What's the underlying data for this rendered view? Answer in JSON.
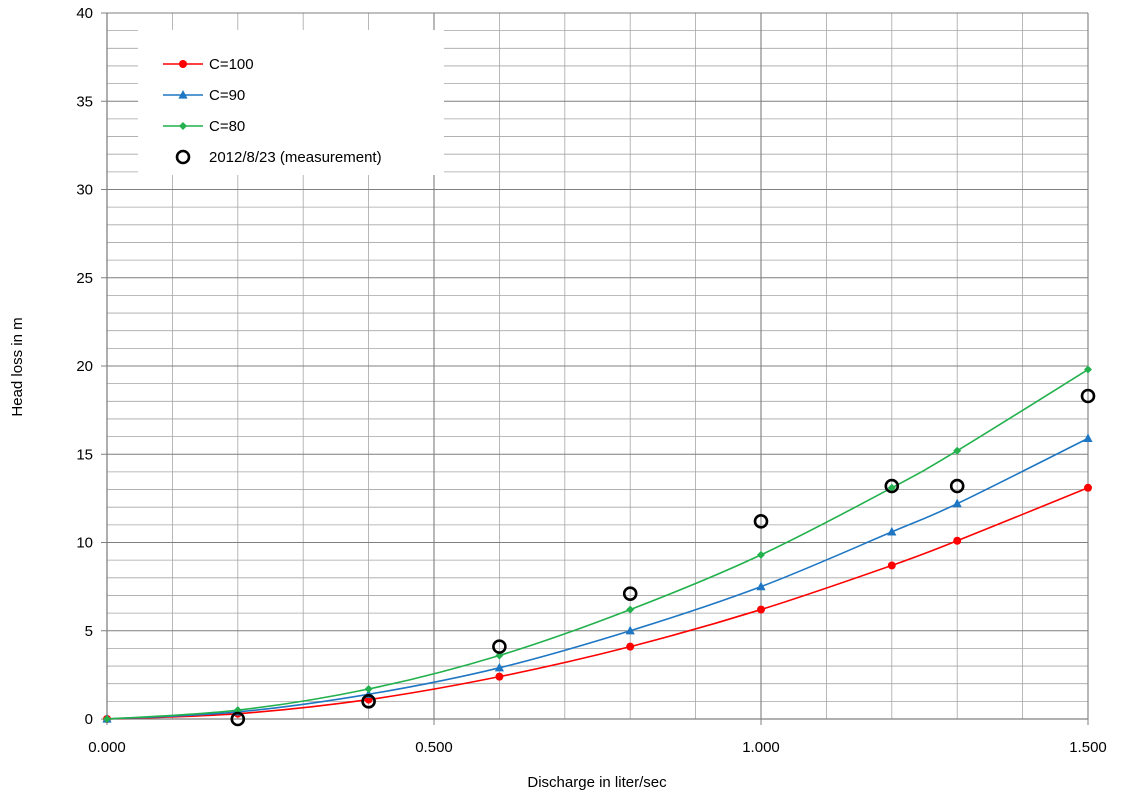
{
  "chart_data": {
    "type": "line",
    "title": "",
    "xlabel": "Discharge in liter/sec",
    "ylabel": "Head loss in m",
    "xlim": [
      0,
      1.5
    ],
    "ylim": [
      0,
      40
    ],
    "x_ticks": [
      0,
      0.5,
      1.0,
      1.5
    ],
    "x_tick_labels": [
      "0.000",
      "0.500",
      "1.000",
      "1.500"
    ],
    "y_ticks": [
      0,
      5,
      10,
      15,
      20,
      25,
      30,
      35,
      40
    ],
    "y_tick_labels": [
      "0",
      "5",
      "10",
      "15",
      "20",
      "25",
      "30",
      "35",
      "40"
    ],
    "grid": true,
    "legend_position": "top-left",
    "series": [
      {
        "name": "C=100",
        "color": "#ff0000",
        "marker": "circle",
        "x": [
          0,
          0.2,
          0.4,
          0.6,
          0.8,
          1.0,
          1.2,
          1.3,
          1.5
        ],
        "y": [
          0,
          0.3,
          1.1,
          2.4,
          4.1,
          6.2,
          8.7,
          10.1,
          13.1
        ]
      },
      {
        "name": "C=90",
        "color": "#1f77c4",
        "marker": "triangle",
        "x": [
          0,
          0.2,
          0.4,
          0.6,
          0.8,
          1.0,
          1.2,
          1.3,
          1.5
        ],
        "y": [
          0,
          0.4,
          1.4,
          2.9,
          5.0,
          7.5,
          10.6,
          12.2,
          15.9
        ]
      },
      {
        "name": "C=80",
        "color": "#22b14c",
        "marker": "diamond",
        "x": [
          0,
          0.2,
          0.4,
          0.6,
          0.8,
          1.0,
          1.2,
          1.3,
          1.5
        ],
        "y": [
          0,
          0.5,
          1.7,
          3.6,
          6.2,
          9.3,
          13.1,
          15.2,
          19.8
        ]
      },
      {
        "name": "2012/8/23 (measurement)",
        "color": "#000000",
        "marker": "open-circle",
        "line": false,
        "x": [
          0.2,
          0.4,
          0.6,
          0.8,
          1.0,
          1.2,
          1.3,
          1.5
        ],
        "y": [
          0.0,
          1.0,
          4.1,
          7.1,
          11.2,
          13.2,
          13.2,
          18.3
        ]
      }
    ]
  }
}
